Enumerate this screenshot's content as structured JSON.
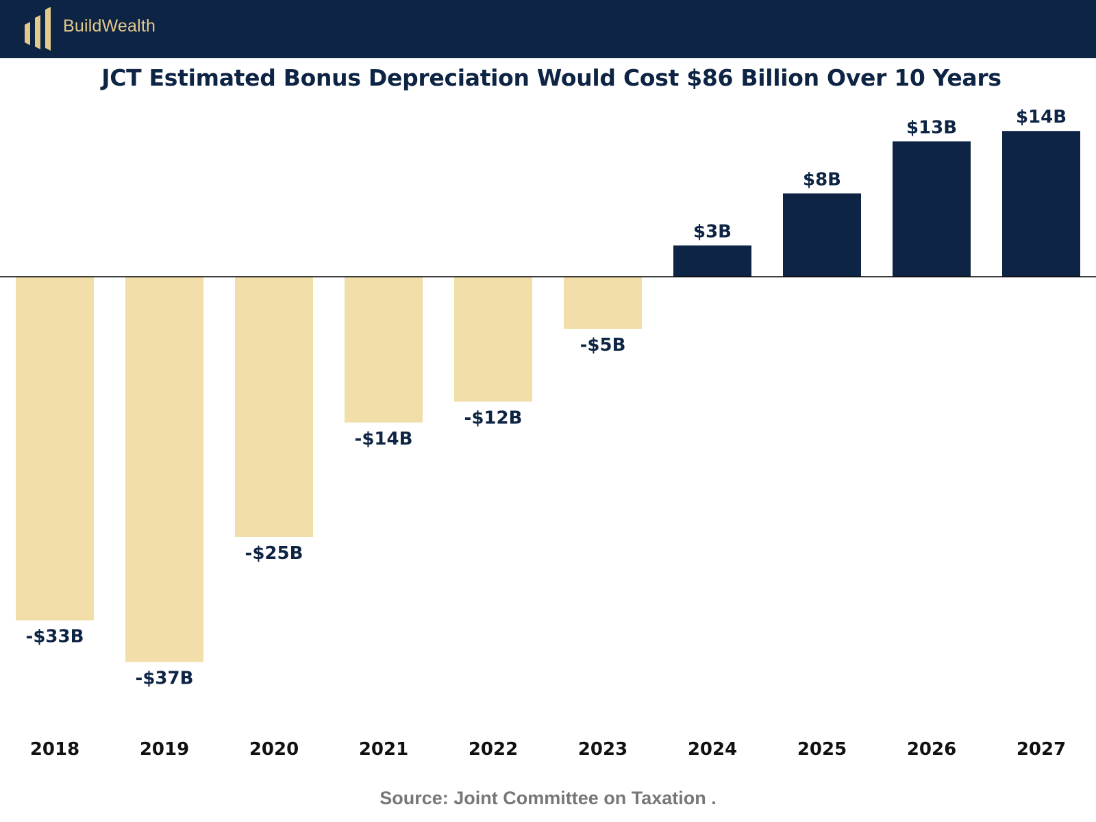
{
  "brand": {
    "logo_icon": "buildwealth-logo-icon",
    "name": "BuildWealth",
    "colors": {
      "header_bg": "#0e2444",
      "logo_gold": "#e2c98c"
    }
  },
  "chart_data": {
    "type": "bar",
    "title": "JCT Estimated Bonus Depreciation Would Cost $86 Billion Over 10 Years",
    "xlabel": "",
    "ylabel": "",
    "categories": [
      "2018",
      "2019",
      "2020",
      "2021",
      "2022",
      "2023",
      "2024",
      "2025",
      "2026",
      "2027"
    ],
    "values": [
      -33,
      -37,
      -25,
      -14,
      -12,
      -5,
      3,
      8,
      13,
      14
    ],
    "value_labels": [
      "-$33B",
      "-$37B",
      "-$25B",
      "-$14B",
      "-$12B",
      "-$5B",
      "$3B",
      "$8B",
      "$13B",
      "$14B"
    ],
    "ylim": [
      -37,
      14
    ],
    "grid": false,
    "colors": {
      "negative": "#f1dea8",
      "positive": "#0e2444",
      "text": "#0e2444",
      "baseline": "#000000"
    }
  },
  "source": "Source: Joint Committee on Taxation ."
}
